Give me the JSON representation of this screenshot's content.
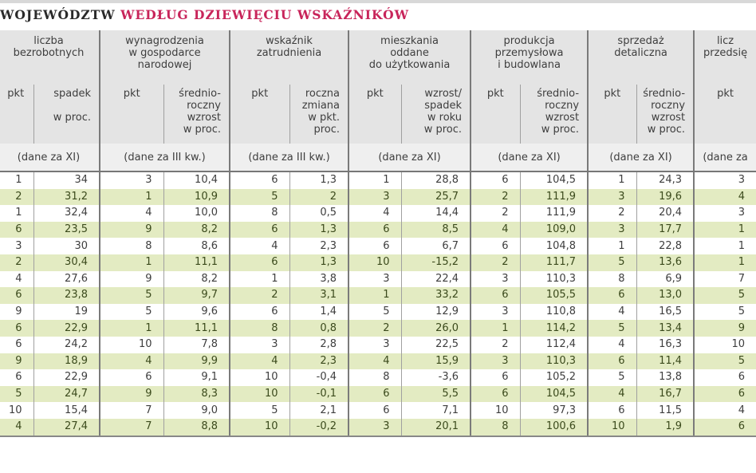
{
  "title": {
    "part1": "WOJEWÓDZTW",
    "part2": "WEDŁUG DZIEWIĘCIU WSKAŹNIKÓW",
    "accent_color": "#c8245a"
  },
  "groups": [
    {
      "label": "liczba\nbezrobotnych",
      "sub_pkt": "pkt",
      "sub_desc": "spadek\n\nw proc.",
      "period": "(dane za XI)"
    },
    {
      "label": "wynagrodzenia\nw gospodarce\nnarodowej",
      "sub_pkt": "pkt",
      "sub_desc": "średnio-\nroczny\nwzrost\nw proc.",
      "period": "(dane za III kw.)"
    },
    {
      "label": "wskaźnik\nzatrudnienia",
      "sub_pkt": "pkt",
      "sub_desc": "roczna\nzmiana\nw pkt.\nproc.",
      "period": "(dane za III kw.)"
    },
    {
      "label": "mieszkania\noddane\ndo użytkowania",
      "sub_pkt": "pkt",
      "sub_desc": "wzrost/\nspadek\nw roku\nw proc.",
      "period": "(dane za XI)"
    },
    {
      "label": "produkcja\nprzemysłowa\ni budowlana",
      "sub_pkt": "pkt",
      "sub_desc": "średnio-\nroczny\nwzrost\nw proc.",
      "period": "(dane za XI)"
    },
    {
      "label": "sprzedaż\ndetaliczna",
      "sub_pkt": "pkt",
      "sub_desc": "średnio-\nroczny\nwzrost\nw proc.",
      "period": "(dane za XI)"
    },
    {
      "label": "licz\nprzedsię",
      "sub_pkt": "pkt",
      "sub_desc": "",
      "period": "(dane za"
    }
  ],
  "rows": [
    [
      "1",
      "34",
      "3",
      "10,4",
      "6",
      "1,3",
      "1",
      "28,8",
      "6",
      "104,5",
      "1",
      "24,3",
      "3"
    ],
    [
      "2",
      "31,2",
      "1",
      "10,9",
      "5",
      "2",
      "3",
      "25,7",
      "2",
      "111,9",
      "3",
      "19,6",
      "4"
    ],
    [
      "1",
      "32,4",
      "4",
      "10,0",
      "8",
      "0,5",
      "4",
      "14,4",
      "2",
      "111,9",
      "2",
      "20,4",
      "3"
    ],
    [
      "6",
      "23,5",
      "9",
      "8,2",
      "6",
      "1,3",
      "6",
      "8,5",
      "4",
      "109,0",
      "3",
      "17,7",
      "1"
    ],
    [
      "3",
      "30",
      "8",
      "8,6",
      "4",
      "2,3",
      "6",
      "6,7",
      "6",
      "104,8",
      "1",
      "22,8",
      "1"
    ],
    [
      "2",
      "30,4",
      "1",
      "11,1",
      "6",
      "1,3",
      "10",
      "-15,2",
      "2",
      "111,7",
      "5",
      "13,6",
      "1"
    ],
    [
      "4",
      "27,6",
      "9",
      "8,2",
      "1",
      "3,8",
      "3",
      "22,4",
      "3",
      "110,3",
      "8",
      "6,9",
      "7"
    ],
    [
      "6",
      "23,8",
      "5",
      "9,7",
      "2",
      "3,1",
      "1",
      "33,2",
      "6",
      "105,5",
      "6",
      "13,0",
      "5"
    ],
    [
      "9",
      "19",
      "5",
      "9,6",
      "6",
      "1,4",
      "5",
      "12,9",
      "3",
      "110,8",
      "4",
      "16,5",
      "5"
    ],
    [
      "6",
      "22,9",
      "1",
      "11,1",
      "8",
      "0,8",
      "2",
      "26,0",
      "1",
      "114,2",
      "5",
      "13,4",
      "9"
    ],
    [
      "6",
      "24,2",
      "10",
      "7,8",
      "3",
      "2,8",
      "3",
      "22,5",
      "2",
      "112,4",
      "4",
      "16,3",
      "10"
    ],
    [
      "9",
      "18,9",
      "4",
      "9,9",
      "4",
      "2,3",
      "4",
      "15,9",
      "3",
      "110,3",
      "6",
      "11,4",
      "5"
    ],
    [
      "6",
      "22,9",
      "6",
      "9,1",
      "10",
      "-0,4",
      "8",
      "-3,6",
      "6",
      "105,2",
      "5",
      "13,8",
      "6"
    ],
    [
      "5",
      "24,7",
      "9",
      "8,3",
      "10",
      "-0,1",
      "6",
      "5,5",
      "6",
      "104,5",
      "4",
      "16,7",
      "6"
    ],
    [
      "10",
      "15,4",
      "7",
      "9,0",
      "5",
      "2,1",
      "6",
      "7,1",
      "10",
      "97,3",
      "6",
      "11,5",
      "4"
    ],
    [
      "4",
      "27,4",
      "7",
      "8,8",
      "10",
      "-0,2",
      "3",
      "20,1",
      "8",
      "100,6",
      "10",
      "1,9",
      "6"
    ]
  ],
  "colors": {
    "stripe": "#e3ebc2",
    "header_bg": "#e4e4e4"
  }
}
